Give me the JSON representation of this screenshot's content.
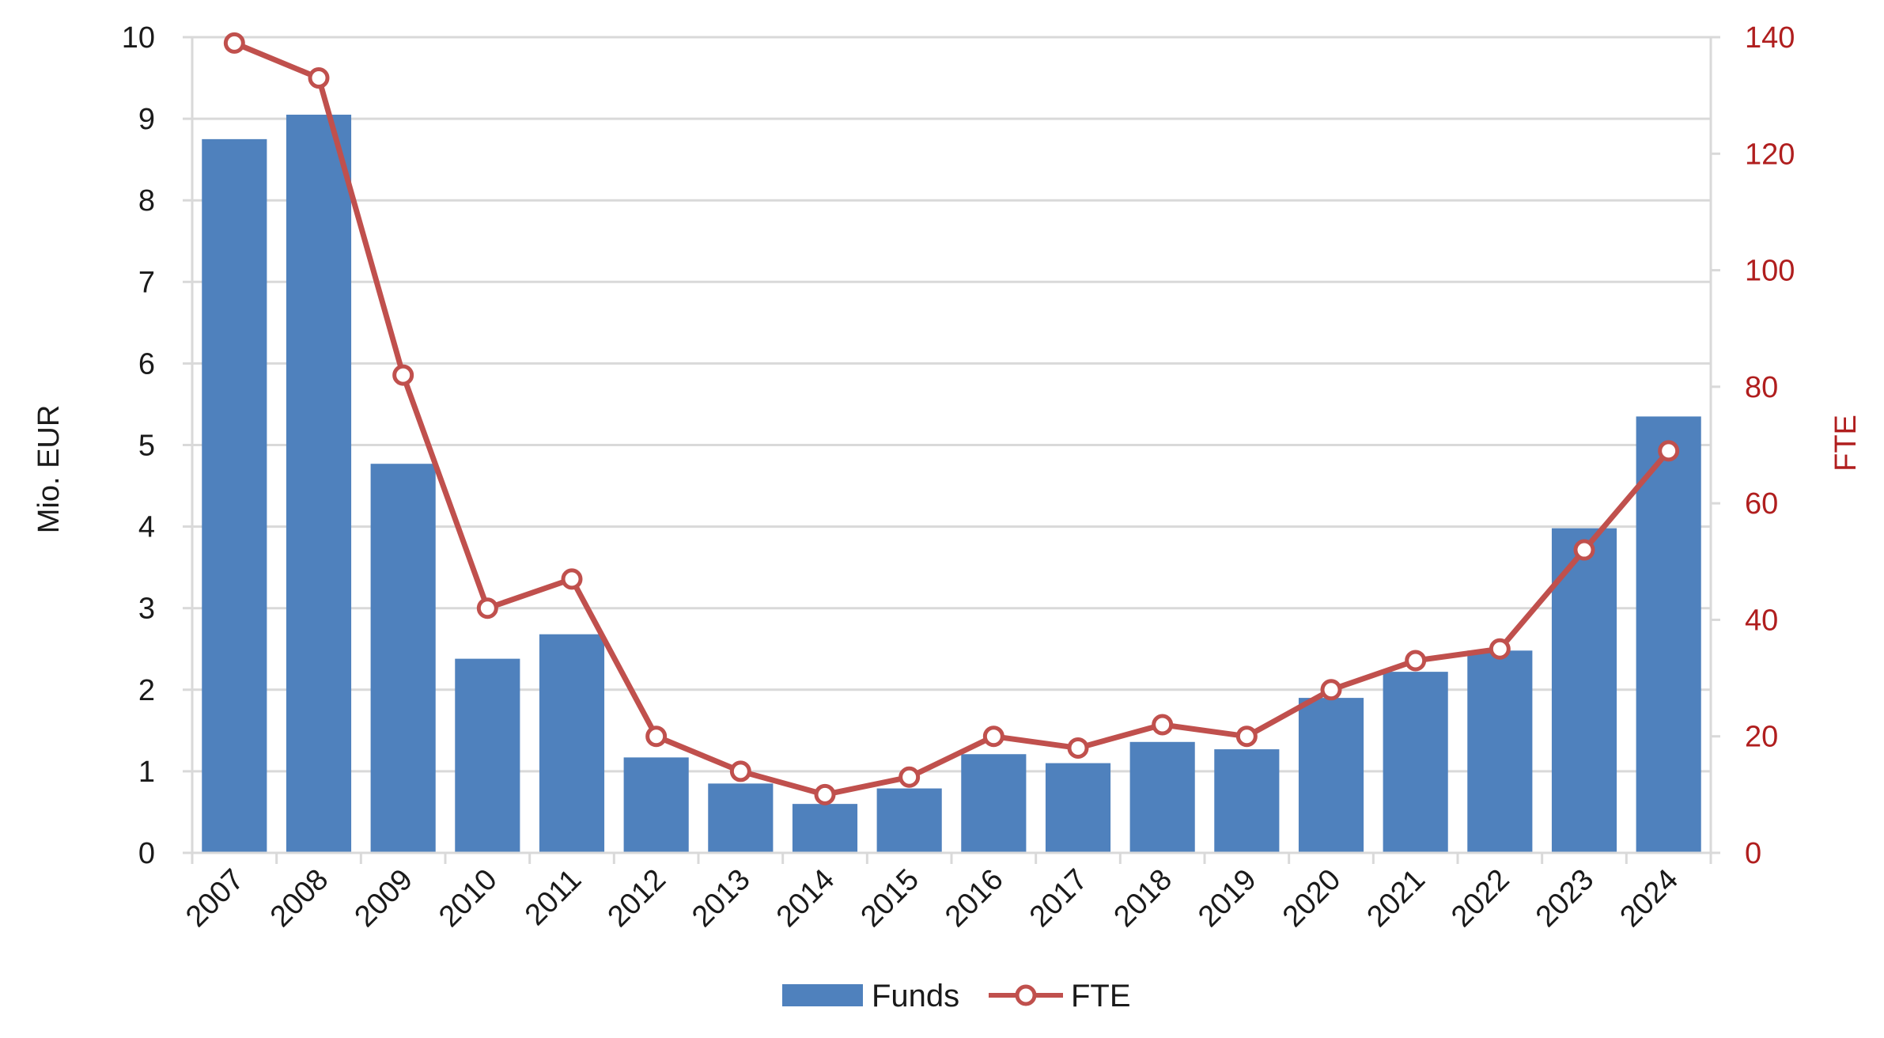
{
  "chart_data": {
    "type": "bar",
    "categories": [
      "2007",
      "2008",
      "2009",
      "2010",
      "2011",
      "2012",
      "2013",
      "2014",
      "2015",
      "2016",
      "2017",
      "2018",
      "2019",
      "2020",
      "2021",
      "2022",
      "2023",
      "2024"
    ],
    "series": [
      {
        "name": "Funds",
        "kind": "bar",
        "axis": "left",
        "color": "#4f81bd",
        "values": [
          8.75,
          9.05,
          4.77,
          2.38,
          2.68,
          1.17,
          0.85,
          0.6,
          0.79,
          1.21,
          1.1,
          1.36,
          1.27,
          1.9,
          2.22,
          2.48,
          3.98,
          5.35
        ]
      },
      {
        "name": "FTE",
        "kind": "line",
        "axis": "right",
        "color": "#c0504d",
        "values": [
          139,
          133,
          82,
          42,
          47,
          20,
          14,
          10,
          13,
          20,
          18,
          22,
          20,
          28,
          33,
          35,
          52,
          69
        ]
      }
    ],
    "ylabel": "Mio. EUR",
    "ylim": [
      0,
      10
    ],
    "yticks": [
      "0",
      "1",
      "2",
      "3",
      "4",
      "5",
      "6",
      "7",
      "8",
      "9",
      "10"
    ],
    "y2label": "FTE",
    "y2lim": [
      0,
      140
    ],
    "y2ticks": [
      "0",
      "20",
      "40",
      "60",
      "80",
      "100",
      "120",
      "140"
    ],
    "grid": true,
    "legend_position": "bottom-center",
    "axis_colors": {
      "left": "#1a1a1a",
      "right": "#b01e1e",
      "grid": "#d9d9d9"
    }
  }
}
